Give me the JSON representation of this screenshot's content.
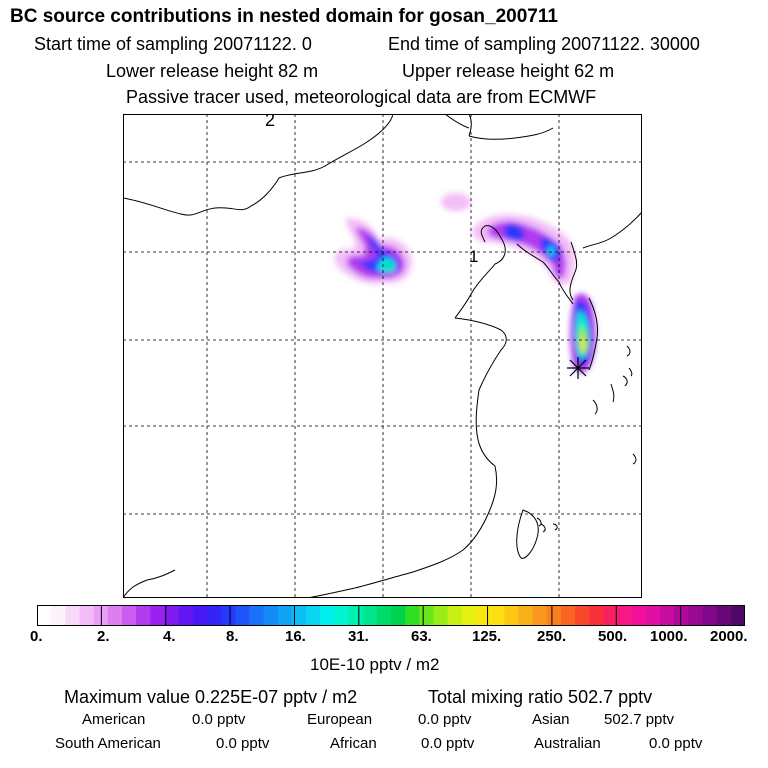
{
  "header": {
    "title": "BC  source contributions in nested domain for gosan_200711",
    "start": "Start time of sampling 20071122.     0",
    "end": "End time of sampling 20071122. 30000",
    "lower": "Lower release height   82 m",
    "upper": "Upper release height   62 m",
    "tracer": "Passive tracer used, meteorological data are from ECMWF"
  },
  "map": {
    "labels": [
      "2",
      "1"
    ],
    "receptor": "gosan"
  },
  "colorbar": {
    "ticks": [
      "0.",
      "2.",
      "4.",
      "8.",
      "16.",
      "31.",
      "63.",
      "125.",
      "250.",
      "500.",
      "1000.",
      "2000."
    ],
    "units": "10E-10 pptv / m2",
    "colors": [
      "#ffffff",
      "#fdf3fd",
      "#f8d9fa",
      "#f3bdf7",
      "#ea9ef5",
      "#dd7ef3",
      "#cd5cf1",
      "#b23bef",
      "#9a21ef",
      "#7e1cef",
      "#6316f3",
      "#4a18f5",
      "#3524f7",
      "#2838fa",
      "#1e55f9",
      "#1a71f9",
      "#148af7",
      "#0fa2f5",
      "#0dbdf3",
      "#0bd5f0",
      "#00f0f0",
      "#00f5d0",
      "#00f0b0",
      "#00e68c",
      "#00dc6a",
      "#00d250",
      "#2fe020",
      "#6ce61a",
      "#9aec16",
      "#c8f014",
      "#e8f010",
      "#f8e812",
      "#fce012",
      "#fcc814",
      "#f8b018",
      "#f8981c",
      "#f88020",
      "#f86424",
      "#f8482a",
      "#f83038",
      "#f82060",
      "#f81884",
      "#f0109c",
      "#e010a4",
      "#c80ca0",
      "#b00898",
      "#980890",
      "#800888",
      "#680878",
      "#500868"
    ]
  },
  "stats": {
    "max_value": "Maximum value  0.225E-07 pptv / m2",
    "total": "Total mixing ratio      502.7 pptv",
    "american_label": "American",
    "american_value": "0.0 pptv",
    "european_label": "European",
    "european_value": "0.0 pptv",
    "asian_label": "Asian",
    "asian_value": "502.7 pptv",
    "south_american_label": "South American",
    "south_american_value": "0.0 pptv",
    "african_label": "African",
    "african_value": "0.0 pptv",
    "australian_label": "Australian",
    "australian_value": "0.0 pptv"
  }
}
